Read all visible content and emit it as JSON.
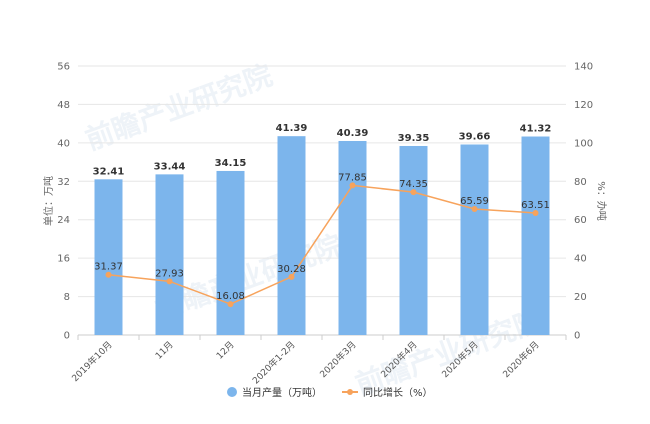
{
  "chart_data": {
    "type": "bar",
    "categories": [
      "2019年10月",
      "11月",
      "12月",
      "2020年1-2月",
      "2020年3月",
      "2020年4月",
      "2020年5月",
      "2020年6月"
    ],
    "series": [
      {
        "name": "当月产量（万吨）",
        "type": "bar",
        "axis": "left",
        "color": "#7cb5ec",
        "values": [
          32.41,
          33.44,
          34.15,
          41.39,
          40.39,
          39.35,
          39.66,
          41.32
        ]
      },
      {
        "name": "同比增长（%）",
        "type": "line",
        "axis": "right",
        "color": "#f7a35c",
        "values": [
          31.37,
          27.93,
          16.08,
          30.28,
          77.85,
          74.35,
          65.59,
          63.51
        ]
      }
    ],
    "ylabel_left": "单位：万吨",
    "ylabel_right": "%：办吨",
    "ylim_left": [
      0,
      56
    ],
    "yticks_left": [
      0,
      8,
      16,
      24,
      32,
      40,
      48,
      56
    ],
    "ylim_right": [
      0,
      140
    ],
    "yticks_right": [
      0,
      20,
      40,
      60,
      80,
      100,
      120,
      140
    ],
    "grid": true,
    "legend_position": "bottom-center"
  },
  "watermark": {
    "text": "前瞻产业研究院"
  }
}
